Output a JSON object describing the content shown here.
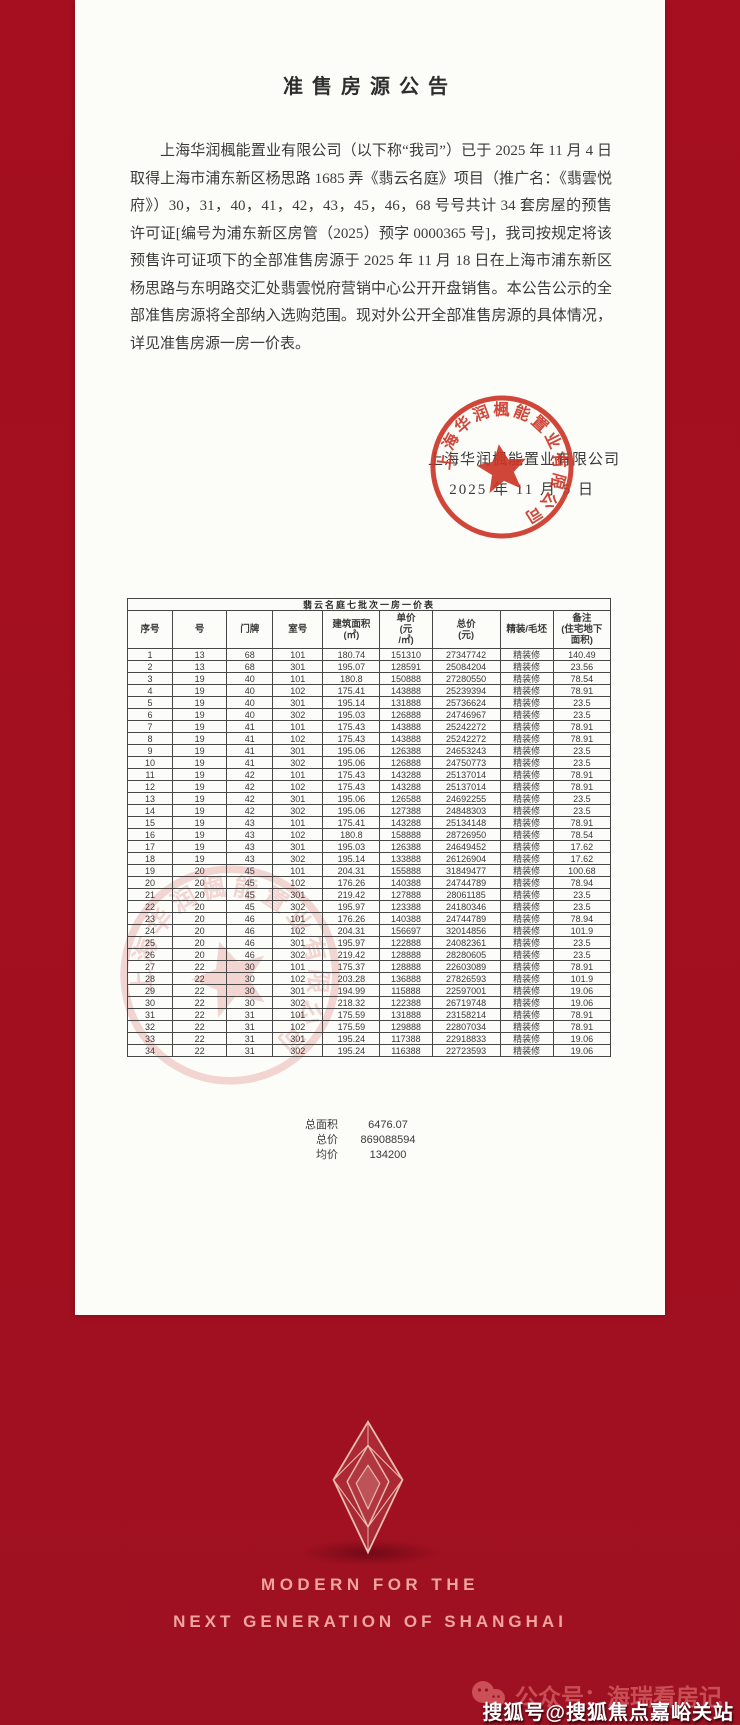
{
  "doc": {
    "title": "准售房源公告",
    "body": "上海华润楓能置业有限公司（以下称“我司”）已于 2025 年 11 月 4 日取得上海市浦东新区杨思路 1685 弄《翡云名庭》项目（推广名：《翡雲悦府》）30，31，40，41，42，43，45，46，68 号号共计 34 套房屋的预售许可证[编号为浦东新区房管（2025）预字 0000365 号]，我司按规定将该预售许可证项下的全部准售房源于 2025 年 11 月 18 日在上海市浦东新区杨思路与东明路交汇处翡雲悦府营销中心公开开盘销售。本公告公示的全部准售房源将全部纳入选购范围。现对外公开全部准售房源的具体情况，详见准售房源一房一价表。",
    "signature_company": "上海华润楓能置业有限公司",
    "signature_date": "2025 年 11 月 5 日",
    "stamp_text": "上海华润楓能置业有限公司"
  },
  "price_table": {
    "title": "翡云名庭七批次一房一价表",
    "headers": [
      "序号",
      "号",
      "门牌",
      "室号",
      "建筑面积\n(㎡)",
      "单价\n(元\n/㎡)",
      "总价\n(元)",
      "精装/毛坯",
      "备注\n(住宅地下\n面积)"
    ],
    "rows": [
      [
        "1",
        "13",
        "68",
        "101",
        "180.74",
        "151310",
        "27347742",
        "精装修",
        "140.49"
      ],
      [
        "2",
        "13",
        "68",
        "301",
        "195.07",
        "128591",
        "25084204",
        "精装修",
        "23.56"
      ],
      [
        "3",
        "19",
        "40",
        "101",
        "180.8",
        "150888",
        "27280550",
        "精装修",
        "78.54"
      ],
      [
        "4",
        "19",
        "40",
        "102",
        "175.41",
        "143888",
        "25239394",
        "精装修",
        "78.91"
      ],
      [
        "5",
        "19",
        "40",
        "301",
        "195.14",
        "131888",
        "25736624",
        "精装修",
        "23.5"
      ],
      [
        "6",
        "19",
        "40",
        "302",
        "195.03",
        "126888",
        "24746967",
        "精装修",
        "23.5"
      ],
      [
        "7",
        "19",
        "41",
        "101",
        "175.43",
        "143888",
        "25242272",
        "精装修",
        "78.91"
      ],
      [
        "8",
        "19",
        "41",
        "102",
        "175.43",
        "143888",
        "25242272",
        "精装修",
        "78.91"
      ],
      [
        "9",
        "19",
        "41",
        "301",
        "195.06",
        "126388",
        "24653243",
        "精装修",
        "23.5"
      ],
      [
        "10",
        "19",
        "41",
        "302",
        "195.06",
        "126888",
        "24750773",
        "精装修",
        "23.5"
      ],
      [
        "11",
        "19",
        "42",
        "101",
        "175.43",
        "143288",
        "25137014",
        "精装修",
        "78.91"
      ],
      [
        "12",
        "19",
        "42",
        "102",
        "175.43",
        "143288",
        "25137014",
        "精装修",
        "78.91"
      ],
      [
        "13",
        "19",
        "42",
        "301",
        "195.06",
        "126588",
        "24692255",
        "精装修",
        "23.5"
      ],
      [
        "14",
        "19",
        "42",
        "302",
        "195.06",
        "127388",
        "24848303",
        "精装修",
        "23.5"
      ],
      [
        "15",
        "19",
        "43",
        "101",
        "175.41",
        "143288",
        "25134148",
        "精装修",
        "78.91"
      ],
      [
        "16",
        "19",
        "43",
        "102",
        "180.8",
        "158888",
        "28726950",
        "精装修",
        "78.54"
      ],
      [
        "17",
        "19",
        "43",
        "301",
        "195.03",
        "126388",
        "24649452",
        "精装修",
        "17.62"
      ],
      [
        "18",
        "19",
        "43",
        "302",
        "195.14",
        "133888",
        "26126904",
        "精装修",
        "17.62"
      ],
      [
        "19",
        "20",
        "45",
        "101",
        "204.31",
        "155888",
        "31849477",
        "精装修",
        "100.68"
      ],
      [
        "20",
        "20",
        "45",
        "102",
        "176.26",
        "140388",
        "24744789",
        "精装修",
        "78.94"
      ],
      [
        "21",
        "20",
        "45",
        "301",
        "219.42",
        "127888",
        "28061185",
        "精装修",
        "23.5"
      ],
      [
        "22",
        "20",
        "45",
        "302",
        "195.97",
        "123388",
        "24180346",
        "精装修",
        "23.5"
      ],
      [
        "23",
        "20",
        "46",
        "101",
        "176.26",
        "140388",
        "24744789",
        "精装修",
        "78.94"
      ],
      [
        "24",
        "20",
        "46",
        "102",
        "204.31",
        "156697",
        "32014856",
        "精装修",
        "101.9"
      ],
      [
        "25",
        "20",
        "46",
        "301",
        "195.97",
        "122888",
        "24082361",
        "精装修",
        "23.5"
      ],
      [
        "26",
        "20",
        "46",
        "302",
        "219.42",
        "128888",
        "28280605",
        "精装修",
        "23.5"
      ],
      [
        "27",
        "22",
        "30",
        "101",
        "175.37",
        "128888",
        "22603089",
        "精装修",
        "78.91"
      ],
      [
        "28",
        "22",
        "30",
        "102",
        "203.28",
        "136888",
        "27826593",
        "精装修",
        "101.9"
      ],
      [
        "29",
        "22",
        "30",
        "301",
        "194.99",
        "115888",
        "22597001",
        "精装修",
        "19.06"
      ],
      [
        "30",
        "22",
        "30",
        "302",
        "218.32",
        "122388",
        "26719748",
        "精装修",
        "19.06"
      ],
      [
        "31",
        "22",
        "31",
        "101",
        "175.59",
        "131888",
        "23158214",
        "精装修",
        "78.91"
      ],
      [
        "32",
        "22",
        "31",
        "102",
        "175.59",
        "129888",
        "22807034",
        "精装修",
        "78.91"
      ],
      [
        "33",
        "22",
        "31",
        "301",
        "195.24",
        "117388",
        "22918833",
        "精装修",
        "19.06"
      ],
      [
        "34",
        "22",
        "31",
        "302",
        "195.24",
        "116388",
        "22723593",
        "精装修",
        "19.06"
      ]
    ],
    "summary": {
      "area_label": "总面积",
      "area_value": "6476.07",
      "total_label": "总价",
      "total_value": "869088594",
      "avg_label": "均价",
      "avg_value": "134200"
    }
  },
  "footer": {
    "slogan_line1": "MODERN FOR THE",
    "slogan_line2": "NEXT GENERATION OF SHANGHAI"
  },
  "watermarks": {
    "wechat": "公众号：海瑞看房记",
    "sohu": "搜狐号@搜狐焦点嘉峪关站"
  },
  "colors": {
    "background_red": "#a2101f",
    "stamp_red": "#cc3425",
    "slogan_pink": "#f0a3a0"
  }
}
